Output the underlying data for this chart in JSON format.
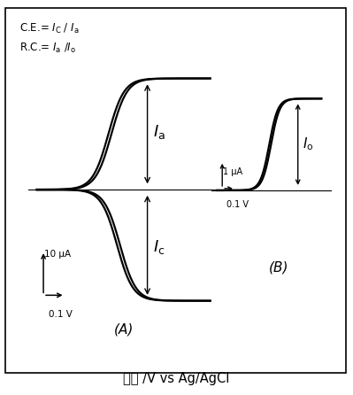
{
  "background_color": "#ffffff",
  "title_text": "電位 /V vs Ag/AgCl",
  "title_fontsize": 10.5,
  "curve_color": "#000000",
  "line_width": 1.6,
  "label_A": "(A)",
  "label_B": "(B)",
  "scale_A_y": "10 μA",
  "scale_A_x": "0.1 V",
  "scale_B_y": "1 μA",
  "scale_B_x": "0.1 V"
}
